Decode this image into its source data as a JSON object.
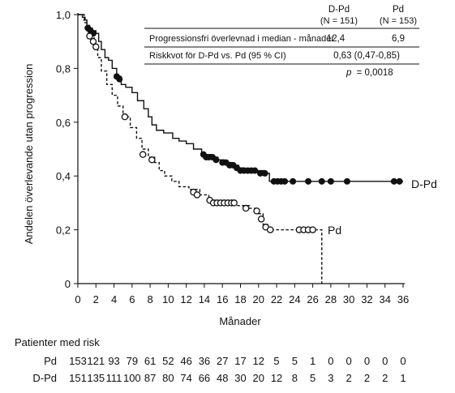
{
  "chart_data": {
    "type": "line",
    "subtype": "kaplan-meier",
    "xlabel": "Månader",
    "ylabel": "Andelen överlevande utan progression",
    "xlim": [
      0,
      36
    ],
    "ylim": [
      0,
      1.0
    ],
    "xticks": [
      0,
      2,
      4,
      6,
      8,
      10,
      12,
      14,
      16,
      18,
      20,
      22,
      24,
      26,
      28,
      30,
      32,
      34,
      36
    ],
    "yticks": [
      0,
      0.2,
      0.4,
      0.6,
      0.8,
      1.0
    ],
    "ytick_labels": [
      "0",
      "0,2",
      "0,4",
      "0,6",
      "0,8",
      "1,0"
    ],
    "series": [
      {
        "name": "D-Pd",
        "line_style": "solid",
        "color": "#111111",
        "marker": "filled-circle",
        "steps": [
          [
            0,
            1.0
          ],
          [
            0.5,
            0.99
          ],
          [
            0.8,
            0.98
          ],
          [
            1.0,
            0.96
          ],
          [
            1.3,
            0.95
          ],
          [
            1.6,
            0.94
          ],
          [
            2.0,
            0.93
          ],
          [
            2.3,
            0.9
          ],
          [
            2.6,
            0.87
          ],
          [
            3.0,
            0.84
          ],
          [
            3.4,
            0.83
          ],
          [
            3.8,
            0.8
          ],
          [
            4.3,
            0.77
          ],
          [
            4.8,
            0.74
          ],
          [
            5.3,
            0.73
          ],
          [
            6.0,
            0.71
          ],
          [
            6.6,
            0.68
          ],
          [
            7.3,
            0.65
          ],
          [
            7.8,
            0.62
          ],
          [
            8.2,
            0.59
          ],
          [
            8.7,
            0.57
          ],
          [
            9.5,
            0.56
          ],
          [
            10.5,
            0.54
          ],
          [
            11.2,
            0.53
          ],
          [
            12.0,
            0.52
          ],
          [
            12.8,
            0.5
          ],
          [
            13.7,
            0.48
          ],
          [
            14.8,
            0.47
          ],
          [
            15.5,
            0.46
          ],
          [
            16.2,
            0.45
          ],
          [
            17.0,
            0.44
          ],
          [
            17.8,
            0.43
          ],
          [
            18.4,
            0.42
          ],
          [
            20.6,
            0.41
          ],
          [
            21.2,
            0.38
          ],
          [
            36.0,
            0.38
          ]
        ],
        "censored": [
          [
            1.1,
            0.95
          ],
          [
            1.4,
            0.94
          ],
          [
            1.7,
            0.93
          ],
          [
            4.3,
            0.77
          ],
          [
            4.6,
            0.76
          ],
          [
            13.9,
            0.48
          ],
          [
            14.2,
            0.47
          ],
          [
            14.5,
            0.47
          ],
          [
            14.9,
            0.47
          ],
          [
            15.3,
            0.46
          ],
          [
            16.0,
            0.45
          ],
          [
            16.4,
            0.45
          ],
          [
            16.8,
            0.44
          ],
          [
            17.2,
            0.44
          ],
          [
            17.6,
            0.43
          ],
          [
            18.0,
            0.42
          ],
          [
            18.4,
            0.42
          ],
          [
            18.8,
            0.42
          ],
          [
            19.2,
            0.42
          ],
          [
            19.6,
            0.42
          ],
          [
            20.2,
            0.41
          ],
          [
            20.7,
            0.41
          ],
          [
            21.7,
            0.38
          ],
          [
            22.1,
            0.38
          ],
          [
            22.5,
            0.38
          ],
          [
            22.9,
            0.38
          ],
          [
            23.8,
            0.38
          ],
          [
            25.5,
            0.38
          ],
          [
            27.0,
            0.38
          ],
          [
            28.0,
            0.38
          ],
          [
            29.8,
            0.38
          ],
          [
            35.0,
            0.38
          ],
          [
            35.6,
            0.38
          ]
        ],
        "end_label": "D-Pd"
      },
      {
        "name": "Pd",
        "line_style": "dashed",
        "color": "#111111",
        "marker": "open-circle",
        "steps": [
          [
            0,
            1.0
          ],
          [
            0.7,
            0.97
          ],
          [
            1.0,
            0.94
          ],
          [
            1.4,
            0.92
          ],
          [
            1.8,
            0.88
          ],
          [
            2.2,
            0.84
          ],
          [
            2.6,
            0.79
          ],
          [
            3.2,
            0.74
          ],
          [
            3.8,
            0.7
          ],
          [
            4.4,
            0.66
          ],
          [
            5.0,
            0.62
          ],
          [
            5.8,
            0.58
          ],
          [
            6.5,
            0.54
          ],
          [
            7.1,
            0.5
          ],
          [
            7.8,
            0.47
          ],
          [
            8.5,
            0.45
          ],
          [
            9.0,
            0.42
          ],
          [
            9.6,
            0.4
          ],
          [
            10.4,
            0.38
          ],
          [
            11.2,
            0.36
          ],
          [
            12.3,
            0.35
          ],
          [
            13.5,
            0.33
          ],
          [
            14.5,
            0.31
          ],
          [
            15.2,
            0.3
          ],
          [
            17.5,
            0.29
          ],
          [
            19.0,
            0.28
          ],
          [
            20.0,
            0.26
          ],
          [
            20.5,
            0.22
          ],
          [
            21.0,
            0.2
          ],
          [
            27.0,
            0.2
          ],
          [
            27.0,
            0.0
          ]
        ],
        "censored": [
          [
            1.3,
            0.92
          ],
          [
            1.7,
            0.9
          ],
          [
            2.0,
            0.88
          ],
          [
            5.2,
            0.62
          ],
          [
            7.2,
            0.48
          ],
          [
            8.2,
            0.46
          ],
          [
            12.8,
            0.34
          ],
          [
            13.2,
            0.33
          ],
          [
            14.6,
            0.31
          ],
          [
            15.0,
            0.3
          ],
          [
            15.4,
            0.3
          ],
          [
            15.8,
            0.3
          ],
          [
            16.2,
            0.3
          ],
          [
            16.6,
            0.3
          ],
          [
            17.0,
            0.3
          ],
          [
            17.3,
            0.3
          ],
          [
            18.6,
            0.28
          ],
          [
            19.8,
            0.27
          ],
          [
            20.3,
            0.24
          ],
          [
            20.8,
            0.21
          ],
          [
            21.3,
            0.2
          ],
          [
            24.5,
            0.2
          ],
          [
            25.0,
            0.2
          ],
          [
            25.5,
            0.2
          ],
          [
            26.0,
            0.2
          ]
        ],
        "end_label": "Pd"
      }
    ]
  },
  "stats_table": {
    "columns": [
      {
        "name": "D-Pd",
        "n": "(N = 151)"
      },
      {
        "name": "Pd",
        "n": "(N = 153)"
      }
    ],
    "rows": [
      {
        "label": "Progressionsfri överlevnad i median - månader",
        "d_pd": "12,4",
        "pd": "6,9"
      },
      {
        "label": "Riskkvot för D-Pd vs. Pd (95 % CI)",
        "value": "0,63 (0,47-0,85)"
      }
    ],
    "p_label": "p",
    "p_value": "= 0,0018"
  },
  "risk_table": {
    "title": "Patienter med risk",
    "rows": [
      {
        "label": "Pd",
        "values": [
          "153",
          "121",
          "93",
          "79",
          "61",
          "52",
          "46",
          "36",
          "27",
          "17",
          "12",
          "5",
          "5",
          "1",
          "0",
          "0",
          "0",
          "0",
          "0"
        ]
      },
      {
        "label": "D-Pd",
        "values": [
          "151",
          "135",
          "111",
          "100",
          "87",
          "80",
          "74",
          "66",
          "48",
          "30",
          "20",
          "12",
          "8",
          "5",
          "3",
          "2",
          "2",
          "2",
          "1"
        ]
      }
    ]
  }
}
